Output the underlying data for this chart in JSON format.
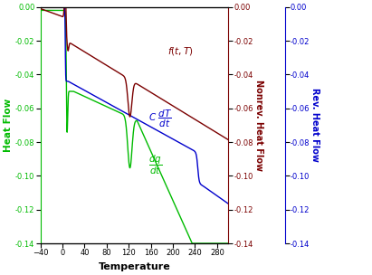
{
  "x_min": -40,
  "x_max": 300,
  "y_min": -0.14,
  "y_max": 0.0,
  "xlabel": "Temperature",
  "ylabel_left": "Heat Flow",
  "ylabel_right_red": "Nonrev. Heat Flow",
  "ylabel_right_blue": "Rev. Heat Flow",
  "color_green": "#00bb00",
  "color_dark_red": "#7b0000",
  "color_blue": "#0000cc",
  "background_color": "#ffffff",
  "yticks": [
    0.0,
    -0.02,
    -0.04,
    -0.06,
    -0.08,
    -0.1,
    -0.12,
    -0.14
  ],
  "xticks": [
    -40,
    0,
    40,
    80,
    120,
    160,
    200,
    240,
    280
  ]
}
